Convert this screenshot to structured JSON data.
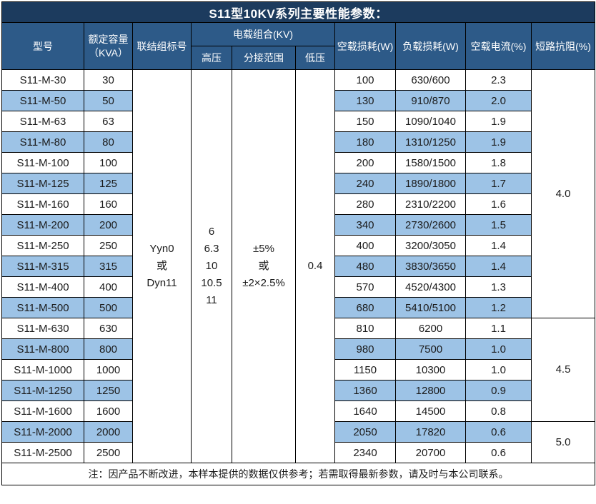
{
  "title": "S11型10KV系列主要性能参数：",
  "columns": {
    "model": "型号",
    "capacity": "额定容量\n（KVA）",
    "vector_group": "联结组标号",
    "voltage_combo": "电载组合(KV)",
    "hv": "高压",
    "tap_range": "分接范围",
    "lv": "低压",
    "no_load_loss": "空载损耗(W)",
    "load_loss": "负载损耗(W)",
    "no_load_current": "空载电流(%)",
    "impedance": "短路抗阻(%)"
  },
  "merged_cells": {
    "vector_group": "Yyn0\n或\nDyn11",
    "hv": "6\n6.3\n10\n10.5\n11",
    "tap_range": "±5%\n或\n±2×2.5%",
    "lv": "0.4"
  },
  "rows": [
    {
      "model": "S11-M-30",
      "capacity": "30",
      "no_load_loss": "100",
      "load_loss": "630/600",
      "no_load_current": "2.3"
    },
    {
      "model": "S11-M-50",
      "capacity": "50",
      "no_load_loss": "130",
      "load_loss": "910/870",
      "no_load_current": "2.0"
    },
    {
      "model": "S11-M-63",
      "capacity": "63",
      "no_load_loss": "150",
      "load_loss": "1090/1040",
      "no_load_current": "1.9"
    },
    {
      "model": "S11-M-80",
      "capacity": "80",
      "no_load_loss": "180",
      "load_loss": "1310/1250",
      "no_load_current": "1.9"
    },
    {
      "model": "S11-M-100",
      "capacity": "100",
      "no_load_loss": "200",
      "load_loss": "1580/1500",
      "no_load_current": "1.8"
    },
    {
      "model": "S11-M-125",
      "capacity": "125",
      "no_load_loss": "240",
      "load_loss": "1890/1800",
      "no_load_current": "1.7"
    },
    {
      "model": "S11-M-160",
      "capacity": "160",
      "no_load_loss": "280",
      "load_loss": "2310/2200",
      "no_load_current": "1.6"
    },
    {
      "model": "S11-M-200",
      "capacity": "200",
      "no_load_loss": "340",
      "load_loss": "2730/2600",
      "no_load_current": "1.5"
    },
    {
      "model": "S11-M-250",
      "capacity": "250",
      "no_load_loss": "400",
      "load_loss": "3200/3050",
      "no_load_current": "1.4"
    },
    {
      "model": "S11-M-315",
      "capacity": "315",
      "no_load_loss": "480",
      "load_loss": "3830/3650",
      "no_load_current": "1.4"
    },
    {
      "model": "S11-M-400",
      "capacity": "400",
      "no_load_loss": "570",
      "load_loss": "4520/4300",
      "no_load_current": "1.3"
    },
    {
      "model": "S11-M-500",
      "capacity": "500",
      "no_load_loss": "680",
      "load_loss": "5410/5100",
      "no_load_current": "1.2"
    },
    {
      "model": "S11-M-630",
      "capacity": "630",
      "no_load_loss": "810",
      "load_loss": "6200",
      "no_load_current": "1.1"
    },
    {
      "model": "S11-M-800",
      "capacity": "800",
      "no_load_loss": "980",
      "load_loss": "7500",
      "no_load_current": "1.0"
    },
    {
      "model": "S11-M-1000",
      "capacity": "1000",
      "no_load_loss": "1150",
      "load_loss": "10300",
      "no_load_current": "1.0"
    },
    {
      "model": "S11-M-1250",
      "capacity": "1250",
      "no_load_loss": "1360",
      "load_loss": "12800",
      "no_load_current": "0.9"
    },
    {
      "model": "S11-M-1600",
      "capacity": "1600",
      "no_load_loss": "1640",
      "load_loss": "14500",
      "no_load_current": "0.8"
    },
    {
      "model": "S11-M-2000",
      "capacity": "2000",
      "no_load_loss": "2050",
      "load_loss": "17820",
      "no_load_current": "0.6"
    },
    {
      "model": "S11-M-2500",
      "capacity": "2500",
      "no_load_loss": "2340",
      "load_loss": "20700",
      "no_load_current": "0.6"
    }
  ],
  "impedance_groups": [
    {
      "value": "4.0",
      "span": 12
    },
    {
      "value": "4.5",
      "span": 5
    },
    {
      "value": "5.0",
      "span": 2
    }
  ],
  "footer_note": "注：因产品不断改进，本样本提供的数据仅供参考；若需取得最新参数，请及时与本公司联系。",
  "colors": {
    "title_bg": "#1C3B5E",
    "header_bg": "#2D5A88",
    "alt_row_bg": "#9DC3E6",
    "row_bg": "#FFFFFF",
    "border": "#000000",
    "header_text": "#FFFFFF",
    "body_text": "#1A1A1A"
  }
}
